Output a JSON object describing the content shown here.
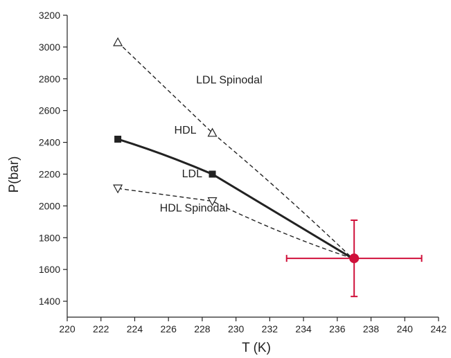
{
  "chart_data": {
    "type": "line",
    "xlabel": "T (K)",
    "ylabel": "P(bar)",
    "xlim": [
      220,
      242
    ],
    "ylim": [
      1300,
      3200
    ],
    "xticks": [
      "220",
      "222",
      "224",
      "226",
      "228",
      "230",
      "232",
      "234",
      "236",
      "238",
      "240",
      "242"
    ],
    "yticks": [
      "1400",
      "1600",
      "1800",
      "2000",
      "2200",
      "2400",
      "2600",
      "2800",
      "3000",
      "3200"
    ],
    "grid": false,
    "series": [
      {
        "style": "solid-thick",
        "color": "#222222",
        "marker": "square",
        "points": [
          {
            "x": 223.0,
            "y": 2420
          },
          {
            "x": 228.6,
            "y": 2200
          }
        ],
        "curve_to": {
          "x": 236.9,
          "y": 1670
        }
      },
      {
        "style": "dashed",
        "color": "#222222",
        "marker": "triangle-up-open",
        "points": [
          {
            "x": 223.0,
            "y": 3030
          },
          {
            "x": 228.6,
            "y": 2460
          }
        ],
        "curve_to": {
          "x": 236.9,
          "y": 1670
        }
      },
      {
        "style": "dashed",
        "color": "#222222",
        "marker": "triangle-down-open",
        "points": [
          {
            "x": 223.0,
            "y": 2110
          },
          {
            "x": 228.6,
            "y": 2030
          }
        ],
        "curve_to": {
          "x": 236.9,
          "y": 1670
        }
      }
    ],
    "critical_point": {
      "x": 237.0,
      "y": 1670,
      "x_err": [
        233.0,
        241.0
      ],
      "y_err": [
        1430,
        1910
      ],
      "color": "#d0103a"
    },
    "annotations": [
      {
        "text": "LDL Spinodal",
        "x": 229.6,
        "y": 2770
      },
      {
        "text": "HDL",
        "x": 227.0,
        "y": 2455
      },
      {
        "text": "LDL",
        "x": 227.4,
        "y": 2180
      },
      {
        "text": "HDL Spinodal",
        "x": 227.5,
        "y": 1965
      }
    ]
  }
}
